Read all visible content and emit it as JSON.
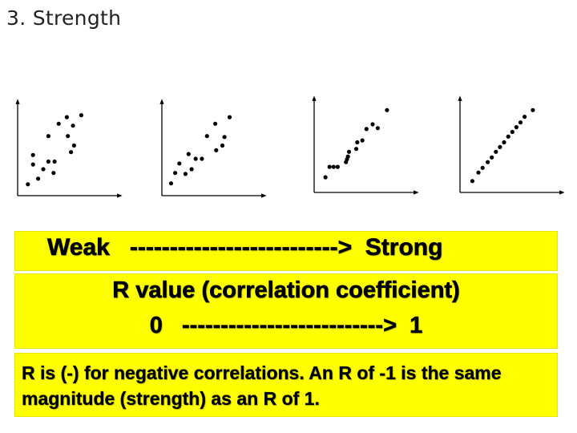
{
  "slide": {
    "title": "3. Strength"
  },
  "chart_data": [
    {
      "type": "scatter",
      "title": "",
      "xlabel": "",
      "ylabel": "",
      "grid": false,
      "xlim": [
        0,
        10
      ],
      "ylim": [
        0,
        10
      ],
      "x": [
        1.0,
        1.5,
        1.5,
        2.0,
        2.5,
        3.0,
        3.0,
        3.5,
        3.6,
        4.0,
        4.8,
        4.9,
        5.2,
        5.4,
        5.5,
        6.2
      ],
      "y": [
        1.2,
        3.3,
        4.3,
        1.8,
        2.8,
        3.6,
        6.3,
        2.4,
        3.6,
        7.6,
        8.3,
        6.3,
        4.6,
        7.4,
        5.3,
        8.5
      ]
    },
    {
      "type": "scatter",
      "title": "",
      "xlabel": "",
      "ylabel": "",
      "grid": false,
      "xlim": [
        0,
        10
      ],
      "ylim": [
        0,
        10
      ],
      "x": [
        0.9,
        1.3,
        1.7,
        2.3,
        2.6,
        2.9,
        3.3,
        3.9,
        4.4,
        5.2,
        5.3,
        5.9,
        6.1,
        6.6
      ],
      "y": [
        1.3,
        2.4,
        3.4,
        2.3,
        4.4,
        2.8,
        3.9,
        3.9,
        6.3,
        7.6,
        4.8,
        5.3,
        6.2,
        8.3
      ]
    },
    {
      "type": "scatter",
      "title": "",
      "xlabel": "",
      "ylabel": "",
      "grid": false,
      "xlim": [
        0,
        10
      ],
      "ylim": [
        0,
        10
      ],
      "x": [
        1.1,
        1.5,
        1.9,
        2.3,
        3.1,
        3.2,
        3.3,
        3.4,
        4.1,
        4.2,
        4.7,
        5.1,
        5.7,
        6.2,
        7.1
      ],
      "y": [
        1.6,
        2.7,
        2.7,
        2.7,
        3.2,
        3.5,
        3.8,
        4.3,
        4.6,
        5.3,
        5.5,
        6.7,
        7.2,
        6.8,
        8.7
      ]
    },
    {
      "type": "scatter",
      "title": "",
      "xlabel": "",
      "ylabel": "",
      "grid": false,
      "xlim": [
        0,
        10
      ],
      "ylim": [
        0,
        10
      ],
      "x": [
        1.2,
        1.8,
        2.2,
        2.7,
        3.1,
        3.5,
        3.9,
        4.3,
        4.7,
        5.1,
        5.5,
        5.9,
        6.3,
        7.1
      ],
      "y": [
        1.2,
        2.1,
        2.6,
        3.2,
        3.7,
        4.3,
        4.8,
        5.3,
        5.9,
        6.4,
        6.9,
        7.4,
        8.0,
        8.7
      ]
    }
  ],
  "strength": {
    "weak": "Weak",
    "arrow": "-------------------------->",
    "strong": "Strong"
  },
  "rvalue": {
    "label": "R value (correlation coefficient)",
    "scale": "0   -------------------------->  1"
  },
  "note": {
    "text": "R is (-) for negative correlations. An R of -1 is the same magnitude (strength) as an R of 1."
  },
  "colors": {
    "highlight": "#ffff00",
    "axis": "#000000",
    "point": "#000000"
  }
}
